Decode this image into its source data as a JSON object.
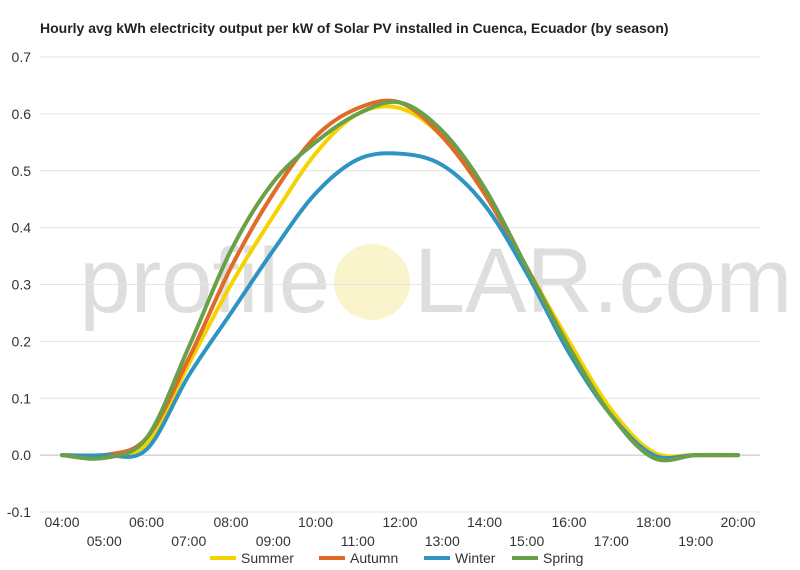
{
  "watermark": {
    "left": "profile",
    "right": "LAR.com"
  },
  "chart_data": {
    "type": "line",
    "title": "Hourly avg kWh electricity output per kW of Solar PV installed in Cuenca, Ecuador (by season)",
    "xlabel": "",
    "ylabel": "",
    "ylim": [
      -0.1,
      0.7
    ],
    "yticks": [
      -0.1,
      0.0,
      0.1,
      0.2,
      0.3,
      0.4,
      0.5,
      0.6,
      0.7
    ],
    "x": [
      "04:00",
      "05:00",
      "06:00",
      "07:00",
      "08:00",
      "09:00",
      "10:00",
      "11:00",
      "12:00",
      "13:00",
      "14:00",
      "15:00",
      "16:00",
      "17:00",
      "18:00",
      "19:00",
      "20:00"
    ],
    "grid": true,
    "legend": "bottom",
    "series": [
      {
        "name": "Summer",
        "color": "#f5d300",
        "values": [
          0.0,
          0.0,
          0.02,
          0.16,
          0.3,
          0.42,
          0.53,
          0.6,
          0.61,
          0.56,
          0.46,
          0.33,
          0.2,
          0.08,
          0.005,
          0.0,
          0.0
        ]
      },
      {
        "name": "Autumn",
        "color": "#e06a27",
        "values": [
          0.0,
          0.0,
          0.03,
          0.17,
          0.33,
          0.46,
          0.56,
          0.61,
          0.62,
          0.56,
          0.46,
          0.33,
          0.19,
          0.07,
          0.0,
          0.0,
          0.0
        ]
      },
      {
        "name": "Winter",
        "color": "#2e94c0",
        "values": [
          0.0,
          0.0,
          0.01,
          0.14,
          0.25,
          0.36,
          0.46,
          0.52,
          0.53,
          0.51,
          0.44,
          0.32,
          0.18,
          0.07,
          0.0,
          0.0,
          0.0
        ]
      },
      {
        "name": "Spring",
        "color": "#6aa04a",
        "values": [
          0.0,
          -0.005,
          0.03,
          0.19,
          0.36,
          0.48,
          0.55,
          0.6,
          0.62,
          0.57,
          0.47,
          0.33,
          0.19,
          0.07,
          -0.005,
          0.0,
          0.0
        ]
      }
    ]
  }
}
